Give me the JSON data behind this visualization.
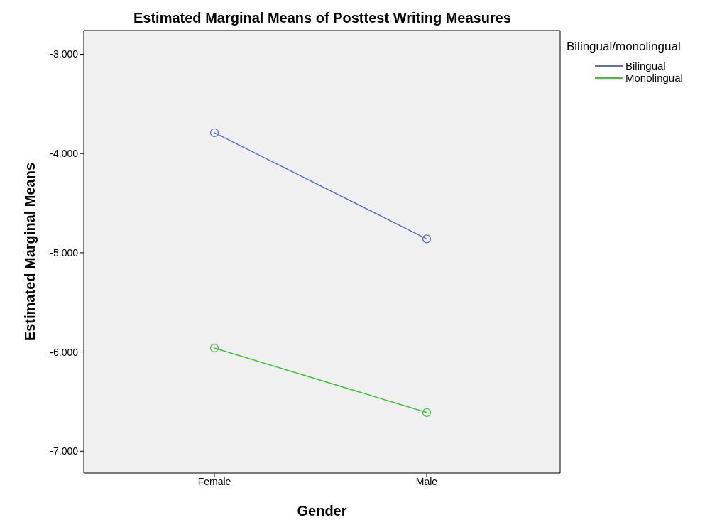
{
  "chart_data": {
    "type": "line",
    "title": "Estimated Marginal Means of Posttest Writing Measures",
    "xlabel": "Gender",
    "ylabel": "Estimated Marginal Means",
    "legend_title": "Bilingual/monolingual",
    "categories": [
      "Female",
      "Male"
    ],
    "series": [
      {
        "name": "Bilingual",
        "color": "#5a6fc6",
        "values": [
          -3.79,
          -4.86
        ]
      },
      {
        "name": "Monolingual",
        "color": "#3dc43d",
        "values": [
          -5.96,
          -6.61
        ]
      }
    ],
    "ylim": [
      -7.22,
      -2.76
    ],
    "yticks": [
      {
        "value": -7,
        "label": "-7.000"
      },
      {
        "value": -6,
        "label": "-6.000"
      },
      {
        "value": -5,
        "label": "-5.000"
      },
      {
        "value": -4,
        "label": "-4.000"
      },
      {
        "value": -3,
        "label": "-3.000"
      }
    ],
    "grid": false,
    "legend": "top right",
    "marker": "circle",
    "line_style": "solid"
  }
}
